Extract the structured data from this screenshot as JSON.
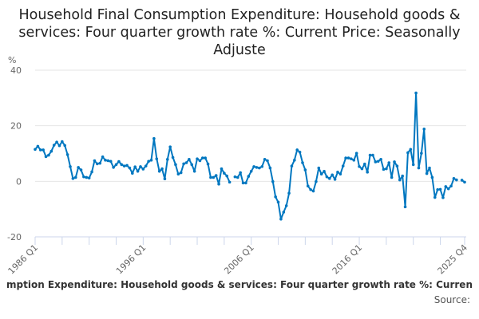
{
  "title": "Household Final Consumption Expenditure: Household goods & services: Four quarter growth rate %: Current Price: Seasonally Adjuste",
  "legend_visible_text": "mption Expenditure: Household goods & services: Four quarter growth rate %: Curren",
  "source_label": "Source:",
  "colors": {
    "line": "#0077c0",
    "grid": "#e6e6e6",
    "axis": "#ccd6eb"
  },
  "chart_data": {
    "type": "line",
    "title": "Household Final Consumption Expenditure: Household goods & services: Four quarter growth rate %: Current Price: Seasonally Adjuste",
    "xlabel": "",
    "ylabel": "%",
    "ylim": [
      -20,
      40
    ],
    "yticks": [
      -20,
      0,
      20,
      40
    ],
    "x_start": "1986 Q1",
    "x_end": "2025 Q4",
    "xtick_labels": [
      {
        "index": 0,
        "label": "1986 Q1"
      },
      {
        "index": 40,
        "label": "1996 Q1"
      },
      {
        "index": 80,
        "label": "2006 Q1"
      },
      {
        "index": 120,
        "label": "2016 Q1"
      },
      {
        "index": 159,
        "label": "2025 Q4"
      }
    ],
    "xtick_every": 10,
    "grid": true,
    "series": [
      {
        "name": "Household Final Consumption Expenditure: Household goods & services: Four quarter growth rate %",
        "values": [
          11.5,
          12.6,
          11.3,
          11.3,
          8.9,
          9.4,
          10.8,
          13,
          14.1,
          12.8,
          14.3,
          12.9,
          9.6,
          5.3,
          1,
          1.4,
          5,
          4.1,
          1.6,
          1.4,
          1.2,
          3.4,
          7.4,
          6.3,
          6.5,
          8.8,
          7.6,
          7.4,
          7.2,
          5,
          6,
          7.1,
          6,
          5.5,
          5.7,
          4.8,
          2.9,
          5.2,
          3.6,
          5.3,
          4.4,
          5.5,
          7.2,
          7.6,
          15.4,
          8.1,
          3.6,
          4.5,
          0.9,
          7.9,
          12.4,
          8.6,
          6,
          2.6,
          3.1,
          6.3,
          6.7,
          7.9,
          6,
          3.6,
          8.1,
          7.4,
          8.4,
          8.4,
          6.2,
          1.4,
          1.4,
          2.1,
          -1,
          4.5,
          2.9,
          1.9,
          -0.3,
          null,
          1.6,
          1.4,
          3.1,
          -0.6,
          -0.6,
          1.8,
          3.6,
          5.3,
          5,
          4.8,
          5.3,
          7.9,
          7.4,
          4.8,
          -0.1,
          -5.6,
          -7.5,
          -13.6,
          -11.1,
          -8.8,
          -4.3,
          5.5,
          7.6,
          11.3,
          10.5,
          6.7,
          4.1,
          -1.7,
          -3,
          -3.5,
          -0.1,
          4.8,
          2.6,
          3.6,
          1.6,
          1,
          2.3,
          0.7,
          3.3,
          2.6,
          5.5,
          8.4,
          8.4,
          8.1,
          7.6,
          10.1,
          5.3,
          4.5,
          6.2,
          3.3,
          9.4,
          9.4,
          7,
          7.2,
          7.9,
          4.3,
          4.5,
          6.7,
          1.4,
          7,
          5.5,
          0.5,
          1.9,
          -9.2,
          10.3,
          11.5,
          6,
          31.8,
          4.8,
          10.1,
          18.8,
          2.8,
          4.8,
          1.4,
          -5.8,
          -3,
          -2.9,
          -5.9,
          -1.9,
          -2.7,
          -1.7,
          1,
          0.5,
          null,
          0.4,
          -0.3
        ]
      }
    ]
  }
}
